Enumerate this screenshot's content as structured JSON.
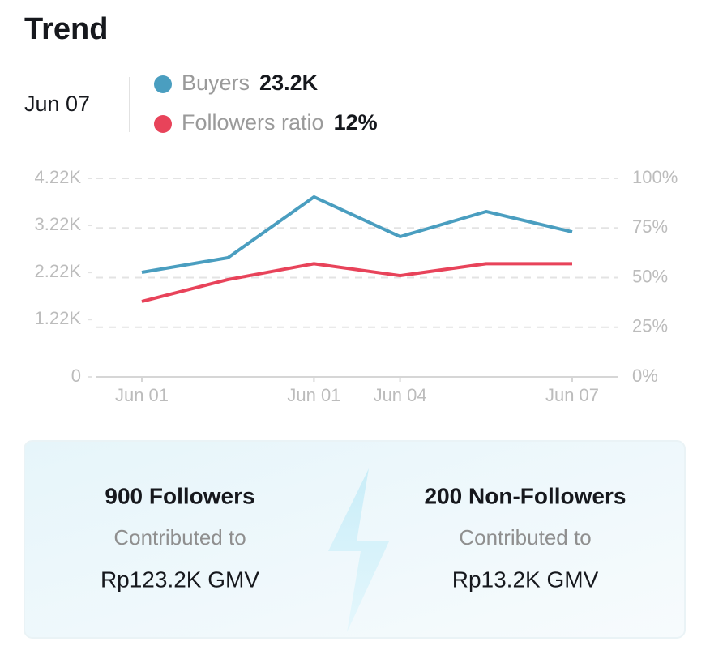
{
  "header": {
    "title": "Trend",
    "date": "Jun 07"
  },
  "chart_data": {
    "type": "line",
    "categories": [
      "Jun 01",
      null,
      "Jun 01",
      "Jun 04",
      null,
      "Jun 07"
    ],
    "series": [
      {
        "name": "Buyers",
        "summary": "23.2K",
        "color": "#4a9ec0",
        "values": [
          2222,
          2532,
          3824,
          2980,
          3514,
          3083
        ]
      },
      {
        "name": "Followers ratio",
        "summary": "12%",
        "color": "#e8435a",
        "axis": "y2",
        "values": [
          38,
          49,
          57,
          51,
          57,
          57
        ]
      }
    ],
    "ylim": [
      0,
      4220
    ],
    "yticks": [
      0,
      {
        "value": 1220,
        "label": "1.22K"
      },
      {
        "value": 2220,
        "label": "2.22K"
      },
      {
        "value": 3220,
        "label": "3.22K"
      },
      {
        "value": 4220,
        "label": "4.22K"
      }
    ],
    "y2lim": [
      0,
      100
    ],
    "y2ticks": [
      {
        "value": 0,
        "label": "0%"
      },
      {
        "value": 25,
        "label": "25%"
      },
      {
        "value": 50,
        "label": "50%"
      },
      {
        "value": 75,
        "label": "75%"
      },
      {
        "value": 100,
        "label": "100%"
      }
    ],
    "grid": true
  },
  "cards": [
    {
      "headline": "900 Followers",
      "caption": "Contributed to",
      "amount": "Rp123.2K GMV"
    },
    {
      "headline": "200 Non-Followers",
      "caption": "Contributed to",
      "amount": "Rp13.2K GMV"
    }
  ]
}
